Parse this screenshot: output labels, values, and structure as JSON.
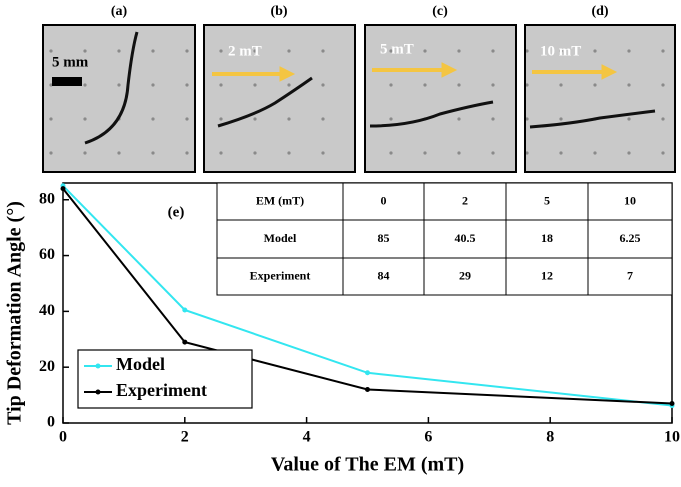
{
  "panels": [
    {
      "label": "(a)",
      "text": "5 mm"
    },
    {
      "label": "(b)",
      "text": "2 mT"
    },
    {
      "label": "(c)",
      "text": "5 mT"
    },
    {
      "label": "(d)",
      "text": "10 mT"
    }
  ],
  "chart_data": {
    "type": "line",
    "panel_label": "(e)",
    "xlabel": "Value of The EM (mT)",
    "ylabel": "Tip Deformation Angle (°)",
    "x": [
      0,
      2,
      5,
      10
    ],
    "series": [
      {
        "name": "Model",
        "color": "#33e6f0",
        "values": [
          85,
          40.5,
          18,
          6.25
        ]
      },
      {
        "name": "Experiment",
        "color": "#000000",
        "values": [
          84,
          29,
          12,
          7
        ]
      }
    ],
    "xlim": [
      0,
      10
    ],
    "xticks": [
      0,
      2,
      4,
      6,
      8,
      10
    ],
    "ylim": [
      0,
      86
    ],
    "yticks": [
      0,
      20,
      40,
      60,
      80
    ],
    "legend": "lower left"
  },
  "table": {
    "rows": [
      [
        "EM (mT)",
        0,
        2,
        5,
        10
      ],
      [
        "Model",
        85,
        40.5,
        18,
        6.25
      ],
      [
        "Experiment",
        84,
        29,
        12,
        7
      ]
    ]
  }
}
